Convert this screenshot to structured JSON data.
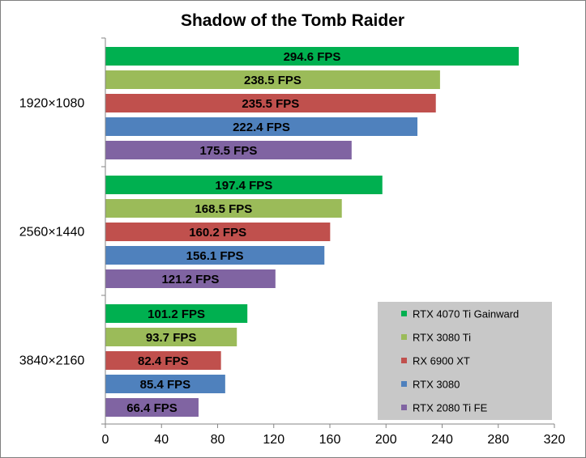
{
  "chart_data": {
    "type": "bar",
    "orientation": "horizontal",
    "title": "Shadow of the Tomb Raider",
    "categories": [
      "1920×1080",
      "2560×1440",
      "3840×2160"
    ],
    "xlim": [
      0,
      320
    ],
    "xticks": [
      0,
      40,
      80,
      120,
      160,
      200,
      240,
      280,
      320
    ],
    "grid": false,
    "legend_position": "bottom-right",
    "unit_suffix": " FPS",
    "series": [
      {
        "name": "RTX 4070 Ti Gainward",
        "color": "#00b050",
        "values": [
          294.6,
          197.4,
          101.2
        ]
      },
      {
        "name": "RTX 3080 Ti",
        "color": "#9bbb59",
        "values": [
          238.5,
          168.5,
          93.7
        ]
      },
      {
        "name": "RX 6900 XT",
        "color": "#c0504d",
        "values": [
          235.5,
          160.2,
          82.4
        ]
      },
      {
        "name": "RTX 3080",
        "color": "#4f81bd",
        "values": [
          222.4,
          156.1,
          85.4
        ]
      },
      {
        "name": "RTX 2080 Ti FE",
        "color": "#8064a2",
        "values": [
          175.5,
          121.2,
          66.4
        ]
      }
    ],
    "data_labels": [
      [
        "294.6 FPS",
        "197.4 FPS",
        "101.2 FPS"
      ],
      [
        "238.5 FPS",
        "168.5 FPS",
        "93.7 FPS"
      ],
      [
        "235.5 FPS",
        "160.2 FPS",
        "82.4 FPS"
      ],
      [
        "222.4 FPS",
        "156.1 FPS",
        "85.4 FPS"
      ],
      [
        "175.5 FPS",
        "121.2 FPS",
        "66.4 FPS"
      ]
    ],
    "legend_bg": "#c8c8c8"
  }
}
